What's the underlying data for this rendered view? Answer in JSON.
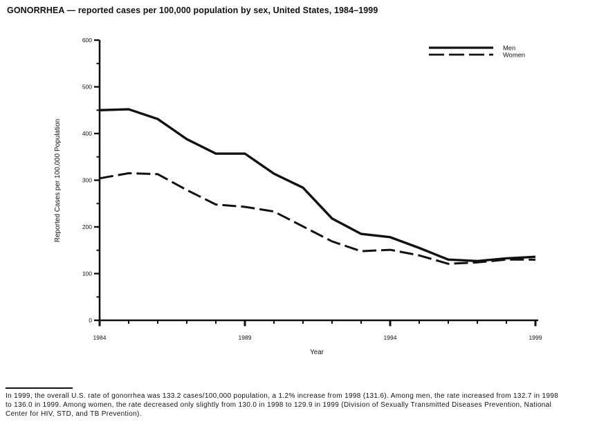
{
  "title": "GONORRHEA — reported cases per 100,000 population by sex, United States, 1984–1999",
  "footnote": {
    "lines": [
      "In 1999, the overall U.S. rate of gonorrhea was 133.2 cases/100,000 population, a 1.2% increase from 1998 (131.6). Among men, the rate increased from 132.7 in 1998",
      "to 136.0 in 1999. Among women, the rate decreased only slightly from 130.0 in 1998 to 129.9 in 1999 (Division of Sexually Transmitted Diseases Prevention, National",
      "Center for HIV, STD, and TB Prevention)."
    ]
  },
  "chart_data": {
    "type": "line",
    "title": "GONORRHEA — reported cases per 100,000 population by sex, United States, 1984–1999",
    "xlabel": "Year",
    "ylabel": "Reported Cases per 100,000 Population",
    "x": [
      1984,
      1985,
      1986,
      1987,
      1988,
      1989,
      1990,
      1991,
      1992,
      1993,
      1994,
      1995,
      1996,
      1997,
      1998,
      1999
    ],
    "series": [
      {
        "name": "Men",
        "style": "solid",
        "values": [
          450,
          452,
          431,
          388,
          357,
          357,
          314,
          284,
          218,
          185,
          178,
          155,
          130,
          127,
          132.7,
          136.0
        ]
      },
      {
        "name": "Women",
        "style": "dashed",
        "values": [
          304,
          315,
          313,
          279,
          248,
          243,
          233,
          201,
          169,
          148,
          151,
          139,
          121,
          124,
          130.0,
          129.9
        ]
      }
    ],
    "ylim": [
      0,
      600
    ],
    "yticks_major": [
      0,
      100,
      200,
      300,
      400,
      500,
      600
    ],
    "ytick_minor_step": 50,
    "xticks_labeled": [
      1984,
      1989,
      1994,
      1999
    ],
    "legend_position": "top-right",
    "grid": false,
    "line_color": "#111111"
  }
}
